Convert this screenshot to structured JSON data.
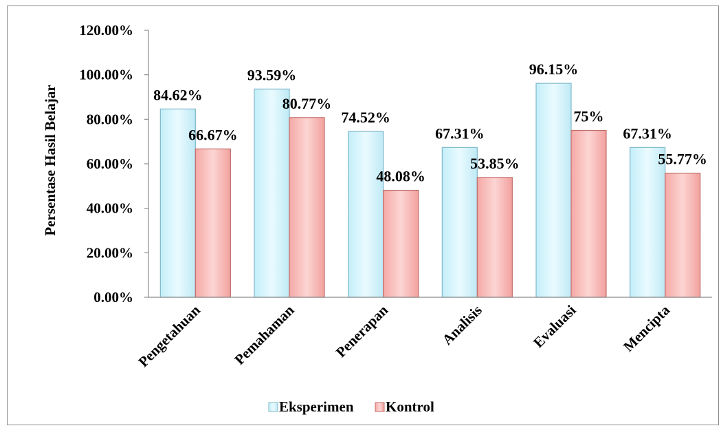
{
  "chart_data": {
    "type": "bar",
    "categories": [
      "Pengetahuan",
      "Pemahaman",
      "Penerapan",
      "Analisis",
      "Evaluasi",
      "Mencipta"
    ],
    "series": [
      {
        "name": "Eksperimen",
        "values": [
          84.62,
          93.59,
          74.52,
          67.31,
          96.15,
          67.31
        ],
        "labels": [
          "84.62%",
          "93.59%",
          "74.52%",
          "67.31%",
          "96.15%",
          "67.31%"
        ],
        "color": "#d4f3fb"
      },
      {
        "name": "Kontrol",
        "values": [
          66.67,
          80.77,
          48.08,
          53.85,
          75,
          55.77
        ],
        "labels": [
          "66.67%",
          "80.77%",
          "48.08%",
          "53.85%",
          "75%",
          "55.77%"
        ],
        "color": "#f7b6b4"
      }
    ],
    "ylabel": "Persentase Hasil Belajar",
    "xlabel": "",
    "ylim": [
      0,
      120
    ],
    "yticks": [
      "0.00%",
      "20.00%",
      "40.00%",
      "60.00%",
      "80.00%",
      "100.00%",
      "120.00%"
    ],
    "grid": false,
    "legend_position": "bottom"
  }
}
